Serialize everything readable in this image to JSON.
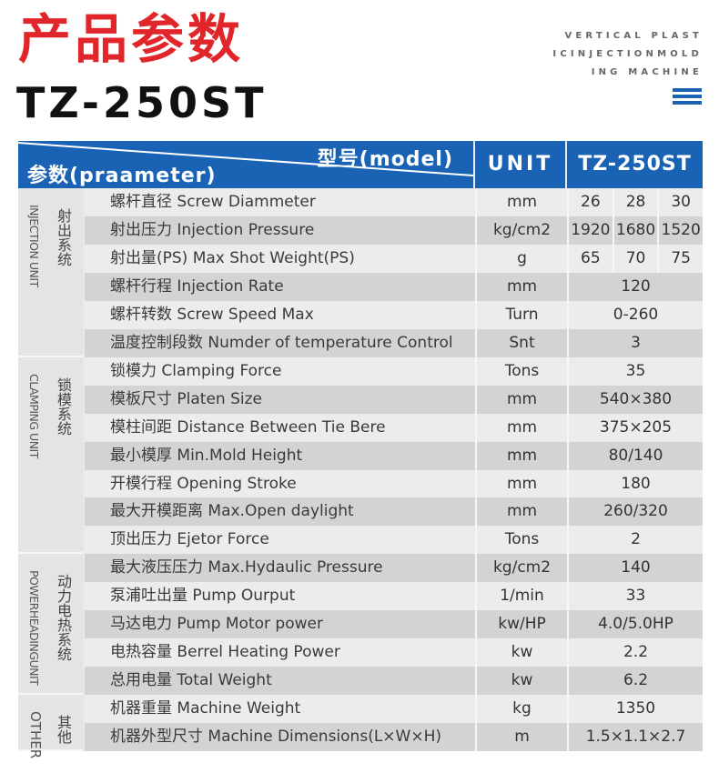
{
  "header": {
    "title": "产品参数",
    "model": "TZ-250ST",
    "tagline": [
      "VERTICAL PLAST",
      "ICINJECTIONMOLD",
      "ING MACHINE"
    ],
    "menu_icon": "hamburger-icon"
  },
  "colors": {
    "title": "#e0262a",
    "accent": "#1a63b4"
  },
  "table": {
    "header_param": "参数(praameter)",
    "header_model": "型号(model)",
    "header_unit": "UNIT",
    "header_value": "TZ-250ST",
    "groups": [
      {
        "zh": "射出系统",
        "en": "INJECTION UNIT",
        "rows": 6
      },
      {
        "zh": "锁模系统",
        "en": "CLAMPING UNIT",
        "rows": 7
      },
      {
        "zh": "动力电热系统",
        "en": "POWERHEADINGUNIT",
        "rows": 5
      },
      {
        "zh": "其他",
        "en": "OTHER",
        "rows": 2
      }
    ],
    "rows": [
      {
        "param": "螺杆直径 Screw Diammeter",
        "unit": "mm",
        "values": [
          "26",
          "28",
          "30"
        ]
      },
      {
        "param": "射出压力 Injection Pressure",
        "unit": "kg/cm2",
        "values": [
          "1920",
          "1680",
          "1520"
        ]
      },
      {
        "param": "射出量(PS) Max Shot Weight(PS)",
        "unit": "g",
        "values": [
          "65",
          "70",
          "75"
        ]
      },
      {
        "param": "螺杆行程 Injection Rate",
        "unit": "mm",
        "values": [
          "120"
        ]
      },
      {
        "param": "螺杆转数 Screw Speed Max",
        "unit": "Turn",
        "values": [
          "0-260"
        ]
      },
      {
        "param": "温度控制段数 Numder of temperature Control",
        "unit": "Snt",
        "values": [
          "3"
        ]
      },
      {
        "param": "锁模力 Clamping Force",
        "unit": "Tons",
        "values": [
          "35"
        ]
      },
      {
        "param": "模板尺寸 Platen Size",
        "unit": "mm",
        "values": [
          "540×380"
        ]
      },
      {
        "param": "模柱间距 Distance Between Tie Bere",
        "unit": "mm",
        "values": [
          "375×205"
        ]
      },
      {
        "param": "最小模厚 Min.Mold Height",
        "unit": "mm",
        "values": [
          "80/140"
        ]
      },
      {
        "param": "开模行程 Opening Stroke",
        "unit": "mm",
        "values": [
          "180"
        ]
      },
      {
        "param": "最大开模距离 Max.Open daylight",
        "unit": "mm",
        "values": [
          "260/320"
        ]
      },
      {
        "param": "顶出压力 Ejetor Force",
        "unit": "Tons",
        "values": [
          "2"
        ]
      },
      {
        "param": "最大液压压力 Max.Hydaulic Pressure",
        "unit": "kg/cm2",
        "values": [
          "140"
        ]
      },
      {
        "param": "泵浦吐出量 Pump Ourput",
        "unit": "1/min",
        "values": [
          "33"
        ]
      },
      {
        "param": "马达电力 Pump Motor power",
        "unit": "kw/HP",
        "values": [
          "4.0/5.0HP"
        ]
      },
      {
        "param": "电热容量 Berrel Heating Power",
        "unit": "kw",
        "values": [
          "2.2"
        ]
      },
      {
        "param": "总用电量 Total Weight",
        "unit": "kw",
        "values": [
          "6.2"
        ]
      },
      {
        "param": "机器重量 Machine Weight",
        "unit": "kg",
        "values": [
          "1350"
        ]
      },
      {
        "param": "机器外型尺寸 Machine Dimensions(L×W×H)",
        "unit": "m",
        "values": [
          "1.5×1.1×2.7"
        ]
      }
    ]
  }
}
